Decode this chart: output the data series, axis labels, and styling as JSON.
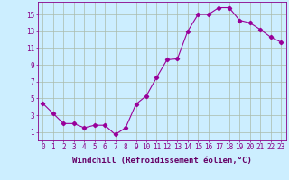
{
  "x": [
    0,
    1,
    2,
    3,
    4,
    5,
    6,
    7,
    8,
    9,
    10,
    11,
    12,
    13,
    14,
    15,
    16,
    17,
    18,
    19,
    20,
    21,
    22,
    23
  ],
  "y": [
    4.4,
    3.2,
    2.0,
    2.0,
    1.5,
    1.8,
    1.8,
    0.7,
    1.5,
    4.3,
    5.3,
    7.5,
    9.6,
    9.7,
    13.0,
    15.0,
    15.0,
    15.8,
    15.8,
    14.3,
    14.0,
    13.2,
    12.3,
    11.7
  ],
  "line_color": "#990099",
  "marker": "D",
  "marker_size": 2.2,
  "bg_color": "#cceeff",
  "grid_color": "#aabbaa",
  "xlabel": "Windchill (Refroidissement éolien,°C)",
  "xlim": [
    -0.5,
    23.5
  ],
  "ylim": [
    0,
    16.5
  ],
  "yticks": [
    1,
    3,
    5,
    7,
    9,
    11,
    13,
    15
  ],
  "xticks": [
    0,
    1,
    2,
    3,
    4,
    5,
    6,
    7,
    8,
    9,
    10,
    11,
    12,
    13,
    14,
    15,
    16,
    17,
    18,
    19,
    20,
    21,
    22,
    23
  ],
  "tick_color": "#880088",
  "label_color": "#660066",
  "label_fontsize": 6.5,
  "tick_fontsize": 5.5
}
